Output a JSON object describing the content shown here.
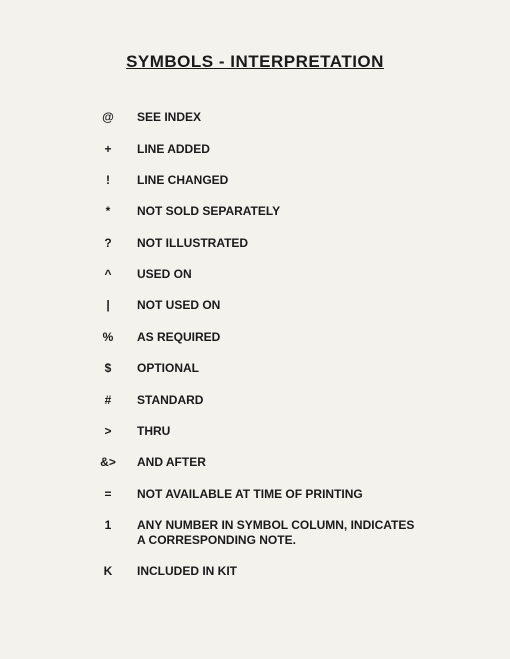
{
  "title": "SYMBOLS - INTERPRETATION",
  "rows": [
    {
      "symbol": "@",
      "desc": "SEE INDEX"
    },
    {
      "symbol": "+",
      "desc": "LINE ADDED"
    },
    {
      "symbol": "!",
      "desc": "LINE CHANGED"
    },
    {
      "symbol": "*",
      "desc": "NOT SOLD SEPARATELY"
    },
    {
      "symbol": "?",
      "desc": "NOT ILLUSTRATED"
    },
    {
      "symbol": "^",
      "desc": "USED ON"
    },
    {
      "symbol": "|",
      "desc": "NOT USED ON"
    },
    {
      "symbol": "%",
      "desc": "AS REQUIRED"
    },
    {
      "symbol": "$",
      "desc": "OPTIONAL"
    },
    {
      "symbol": "#",
      "desc": "STANDARD"
    },
    {
      "symbol": ">",
      "desc": "THRU"
    },
    {
      "symbol": "&>",
      "desc": "AND AFTER"
    },
    {
      "symbol": "=",
      "desc": "NOT AVAILABLE AT TIME OF PRINTING"
    },
    {
      "symbol": "1",
      "desc": "ANY NUMBER IN SYMBOL COLUMN, INDICATES A CORRESPONDING NOTE."
    },
    {
      "symbol": "K",
      "desc": "INCLUDED IN KIT"
    }
  ]
}
